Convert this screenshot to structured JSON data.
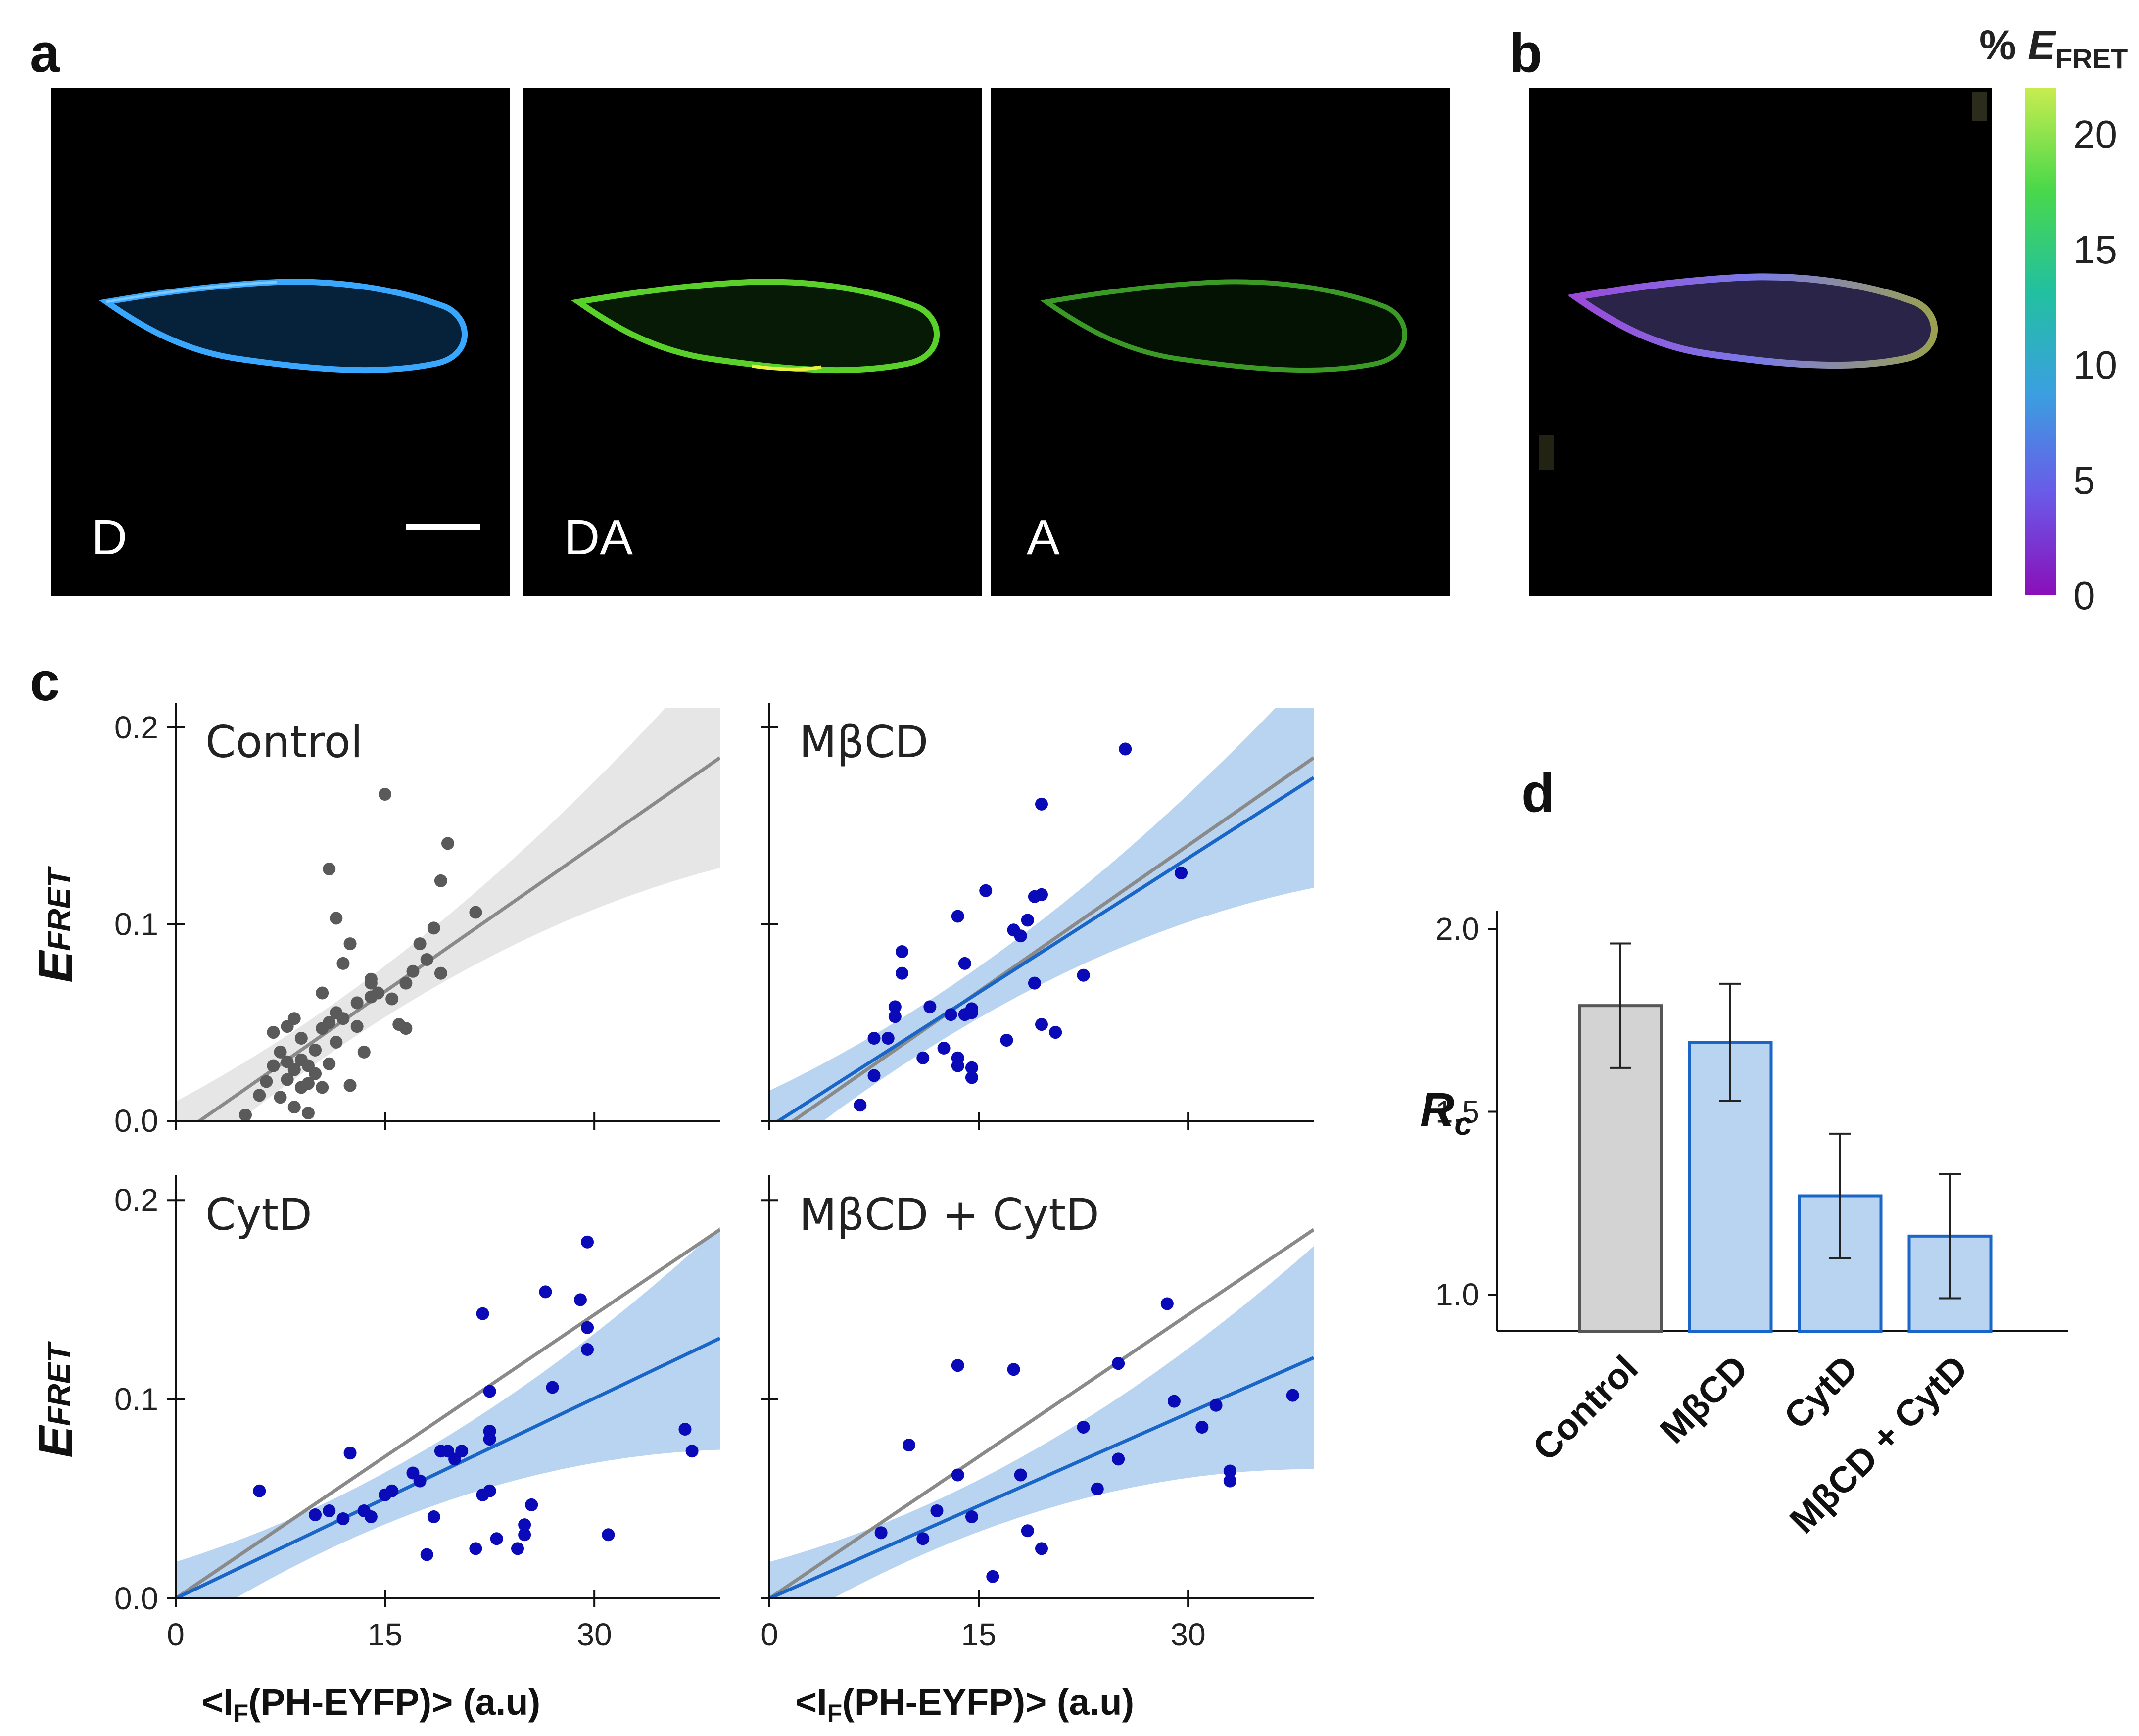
{
  "panels": {
    "a": "a",
    "b": "b",
    "c": "c",
    "d": "d"
  },
  "micrographs": {
    "channels": [
      "D",
      "DA",
      "A"
    ],
    "colors": {
      "D": "#3aa7ff",
      "DA": "#5ad02a",
      "A": "#3a9a25"
    }
  },
  "colorbar": {
    "title_prefix": "% ",
    "title_main": "E",
    "title_sub": "FRET",
    "ticks": [
      0,
      5,
      10,
      15,
      20
    ],
    "range": [
      0,
      22
    ],
    "colors": [
      "#8a0fb8",
      "#6a5ae8",
      "#3aa0e0",
      "#22c0a0",
      "#4ad84a",
      "#c8ec50"
    ]
  },
  "panel_c_labels": {
    "y_main": "E",
    "y_sub": "FRET",
    "x_label_main": "<I",
    "x_label_sub": "F",
    "x_label_rest": "(PH-EYFP)> (a.u)"
  },
  "chart_data": [
    {
      "type": "scatter",
      "title": "Control",
      "xlabel": "<IF(PH-EYFP)> (a.u)",
      "ylabel": "EFRET",
      "xlim": [
        0,
        39
      ],
      "ylim": [
        0,
        0.21
      ],
      "xticks": [
        0,
        15,
        30
      ],
      "yticks": [
        0.0,
        0.1,
        0.2
      ],
      "color": "#5a5a5a",
      "fit": {
        "slope": 0.00495,
        "intercept": -0.0085,
        "color": "#8a8a8a"
      },
      "band_color": "#e6e6e6",
      "points": [
        [
          5,
          0.003
        ],
        [
          6,
          0.013
        ],
        [
          6.5,
          0.02
        ],
        [
          7,
          0.028
        ],
        [
          7,
          0.045
        ],
        [
          7.5,
          0.012
        ],
        [
          7.5,
          0.035
        ],
        [
          8,
          0.021
        ],
        [
          8,
          0.03
        ],
        [
          8,
          0.048
        ],
        [
          8.5,
          0.007
        ],
        [
          8.5,
          0.026
        ],
        [
          9,
          0.017
        ],
        [
          9,
          0.031
        ],
        [
          9,
          0.042
        ],
        [
          8.5,
          0.052
        ],
        [
          9.5,
          0.028
        ],
        [
          9.5,
          0.004
        ],
        [
          9.5,
          0.019
        ],
        [
          10,
          0.024
        ],
        [
          10,
          0.036
        ],
        [
          10.5,
          0.017
        ],
        [
          10.5,
          0.047
        ],
        [
          10.5,
          0.065
        ],
        [
          11,
          0.029
        ],
        [
          11,
          0.05
        ],
        [
          11.5,
          0.04
        ],
        [
          11.5,
          0.055
        ],
        [
          11,
          0.128
        ],
        [
          11.5,
          0.103
        ],
        [
          12,
          0.08
        ],
        [
          12,
          0.052
        ],
        [
          12.5,
          0.018
        ],
        [
          12.5,
          0.09
        ],
        [
          13,
          0.048
        ],
        [
          13,
          0.06
        ],
        [
          13.5,
          0.035
        ],
        [
          14,
          0.072
        ],
        [
          14,
          0.063
        ],
        [
          14,
          0.07
        ],
        [
          14.5,
          0.065
        ],
        [
          15,
          0.166
        ],
        [
          15.5,
          0.062
        ],
        [
          16,
          0.049
        ],
        [
          16.5,
          0.047
        ],
        [
          16.5,
          0.07
        ],
        [
          17,
          0.076
        ],
        [
          17.5,
          0.09
        ],
        [
          18,
          0.082
        ],
        [
          18.5,
          0.098
        ],
        [
          19,
          0.122
        ],
        [
          19,
          0.075
        ],
        [
          19.5,
          0.141
        ],
        [
          21.5,
          0.106
        ]
      ]
    },
    {
      "type": "scatter",
      "title": "MβCD",
      "xlabel": "<IF(PH-EYFP)> (a.u)",
      "ylabel": "EFRET",
      "xlim": [
        0,
        39
      ],
      "ylim": [
        0,
        0.21
      ],
      "xticks": [
        0,
        15,
        30
      ],
      "yticks": [
        0.0,
        0.1,
        0.2
      ],
      "color": "#0a0ab8",
      "fit": {
        "slope": 0.00455,
        "intercept": -0.003,
        "color": "#1a66c8"
      },
      "reference_fit": {
        "slope": 0.00495,
        "intercept": -0.0085,
        "color": "#8a8a8a"
      },
      "band_color": "#b8d4f0",
      "points": [
        [
          6.5,
          0.008
        ],
        [
          7.5,
          0.023
        ],
        [
          7.5,
          0.042
        ],
        [
          8.5,
          0.042
        ],
        [
          9,
          0.053
        ],
        [
          9,
          0.058
        ],
        [
          9.5,
          0.075
        ],
        [
          9.5,
          0.086
        ],
        [
          11,
          0.032
        ],
        [
          11.5,
          0.058
        ],
        [
          12.5,
          0.037
        ],
        [
          13,
          0.054
        ],
        [
          13.5,
          0.028
        ],
        [
          13.5,
          0.032
        ],
        [
          13.5,
          0.104
        ],
        [
          14,
          0.054
        ],
        [
          14,
          0.08
        ],
        [
          14.5,
          0.022
        ],
        [
          14.5,
          0.055
        ],
        [
          14.5,
          0.057
        ],
        [
          14.5,
          0.027
        ],
        [
          15.5,
          0.117
        ],
        [
          17,
          0.041
        ],
        [
          17.5,
          0.097
        ],
        [
          18,
          0.094
        ],
        [
          18.5,
          0.102
        ],
        [
          19,
          0.114
        ],
        [
          19,
          0.07
        ],
        [
          19.5,
          0.115
        ],
        [
          19.5,
          0.049
        ],
        [
          20.5,
          0.045
        ],
        [
          19.5,
          0.161
        ],
        [
          22.5,
          0.074
        ],
        [
          25.5,
          0.189
        ],
        [
          29.5,
          0.126
        ]
      ]
    },
    {
      "type": "scatter",
      "title": "CytD",
      "xlabel": "<IF(PH-EYFP)> (a.u)",
      "ylabel": "EFRET",
      "xlim": [
        0,
        39
      ],
      "ylim": [
        0,
        0.21
      ],
      "xticks": [
        0,
        15,
        30
      ],
      "yticks": [
        0.0,
        0.1,
        0.2
      ],
      "color": "#0a0ab8",
      "fit": {
        "slope": 0.00335,
        "intercept": 0.0,
        "color": "#1a66c8"
      },
      "reference_fit": {
        "slope": 0.00475,
        "intercept": 0.0,
        "color": "#8a8a8a"
      },
      "band_color": "#b8d4f0",
      "points": [
        [
          6,
          0.054
        ],
        [
          10,
          0.042
        ],
        [
          11,
          0.044
        ],
        [
          12,
          0.04
        ],
        [
          12.5,
          0.073
        ],
        [
          13.5,
          0.044
        ],
        [
          14,
          0.041
        ],
        [
          15,
          0.052
        ],
        [
          15.5,
          0.054
        ],
        [
          17,
          0.063
        ],
        [
          17.5,
          0.059
        ],
        [
          18,
          0.022
        ],
        [
          18.5,
          0.041
        ],
        [
          19,
          0.074
        ],
        [
          19.5,
          0.074
        ],
        [
          20,
          0.07
        ],
        [
          20.5,
          0.074
        ],
        [
          21.5,
          0.025
        ],
        [
          22,
          0.052
        ],
        [
          22,
          0.143
        ],
        [
          22.5,
          0.08
        ],
        [
          22.5,
          0.084
        ],
        [
          22.5,
          0.054
        ],
        [
          22.5,
          0.104
        ],
        [
          23,
          0.03
        ],
        [
          24.5,
          0.025
        ],
        [
          25,
          0.032
        ],
        [
          25,
          0.037
        ],
        [
          25.5,
          0.047
        ],
        [
          26.5,
          0.154
        ],
        [
          27,
          0.106
        ],
        [
          29,
          0.15
        ],
        [
          29.5,
          0.136
        ],
        [
          29.5,
          0.125
        ],
        [
          29.5,
          0.179
        ],
        [
          31,
          0.032
        ],
        [
          36.5,
          0.085
        ],
        [
          37,
          0.074
        ]
      ]
    },
    {
      "type": "scatter",
      "title": "MβCD + CytD",
      "xlabel": "<IF(PH-EYFP)> (a.u)",
      "ylabel": "EFRET",
      "xlim": [
        0,
        39
      ],
      "ylim": [
        0,
        0.21
      ],
      "xticks": [
        0,
        15,
        30
      ],
      "yticks": [
        0.0,
        0.1,
        0.2
      ],
      "color": "#0a0ab8",
      "fit": {
        "slope": 0.0031,
        "intercept": 0.0,
        "color": "#1a66c8"
      },
      "reference_fit": {
        "slope": 0.00475,
        "intercept": 0.0,
        "color": "#8a8a8a"
      },
      "band_color": "#b8d4f0",
      "points": [
        [
          8,
          0.033
        ],
        [
          10,
          0.077
        ],
        [
          11,
          0.03
        ],
        [
          12,
          0.044
        ],
        [
          13.5,
          0.062
        ],
        [
          13.5,
          0.117
        ],
        [
          14.5,
          0.041
        ],
        [
          16,
          0.011
        ],
        [
          17.5,
          0.115
        ],
        [
          18,
          0.062
        ],
        [
          18.5,
          0.034
        ],
        [
          19.5,
          0.025
        ],
        [
          22.5,
          0.086
        ],
        [
          23.5,
          0.055
        ],
        [
          25,
          0.07
        ],
        [
          25,
          0.118
        ],
        [
          28.5,
          0.148
        ],
        [
          29,
          0.099
        ],
        [
          31,
          0.086
        ],
        [
          32,
          0.097
        ],
        [
          33,
          0.064
        ],
        [
          33,
          0.059
        ],
        [
          37.5,
          0.102
        ]
      ]
    },
    {
      "type": "bar",
      "title": "",
      "ylabel": "Rc",
      "ylim": [
        0.9,
        2.05
      ],
      "yticks": [
        1.0,
        1.5,
        2.0
      ],
      "categories": [
        "Control",
        "MβCD",
        "CytD",
        "MβCD + CytD"
      ],
      "values": [
        1.79,
        1.69,
        1.27,
        1.16
      ],
      "errors": [
        0.17,
        0.16,
        0.17,
        0.17
      ],
      "fills": [
        "#d3d3d3",
        "#b8d4f0",
        "#b8d4f0",
        "#b8d4f0"
      ],
      "strokes": [
        "#555555",
        "#1a66c8",
        "#1a66c8",
        "#1a66c8"
      ]
    }
  ]
}
